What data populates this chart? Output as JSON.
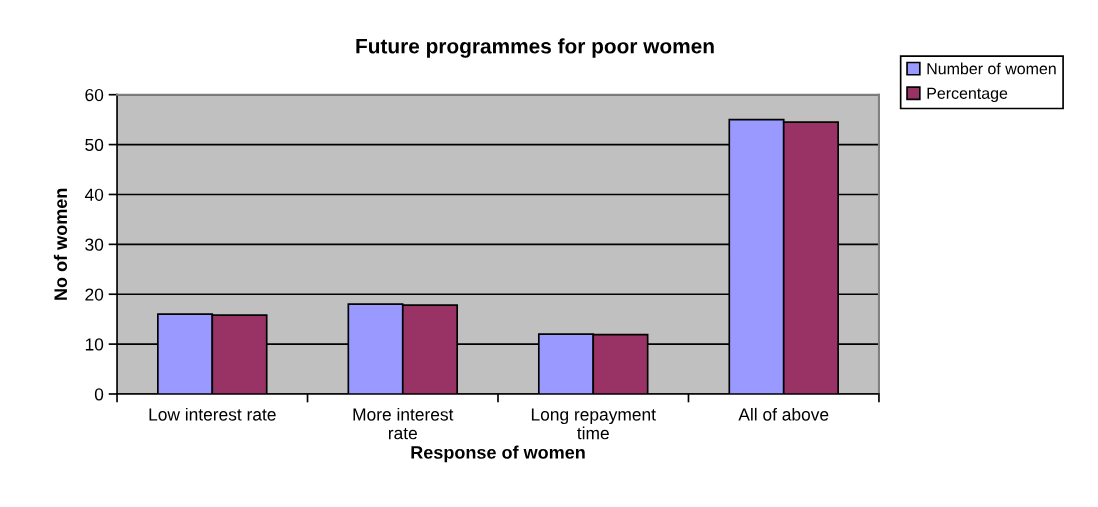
{
  "chart_data": {
    "type": "bar",
    "title": "Future programmes for poor women",
    "xlabel": "Response of women",
    "ylabel": "No of women",
    "categories": [
      "Low interest rate",
      "More interest\nrate",
      "Long repayment\ntime",
      "All of above"
    ],
    "series": [
      {
        "name": "Number of women",
        "color": "#9999ff",
        "values": [
          16,
          18,
          12,
          55
        ]
      },
      {
        "name": "Percentage",
        "color": "#993366",
        "values": [
          15.8,
          17.8,
          11.9,
          54.5
        ]
      }
    ],
    "ylim": [
      0,
      60
    ],
    "yticks": [
      0,
      10,
      20,
      30,
      40,
      50,
      60
    ],
    "grid": "y",
    "legend": "top right"
  }
}
